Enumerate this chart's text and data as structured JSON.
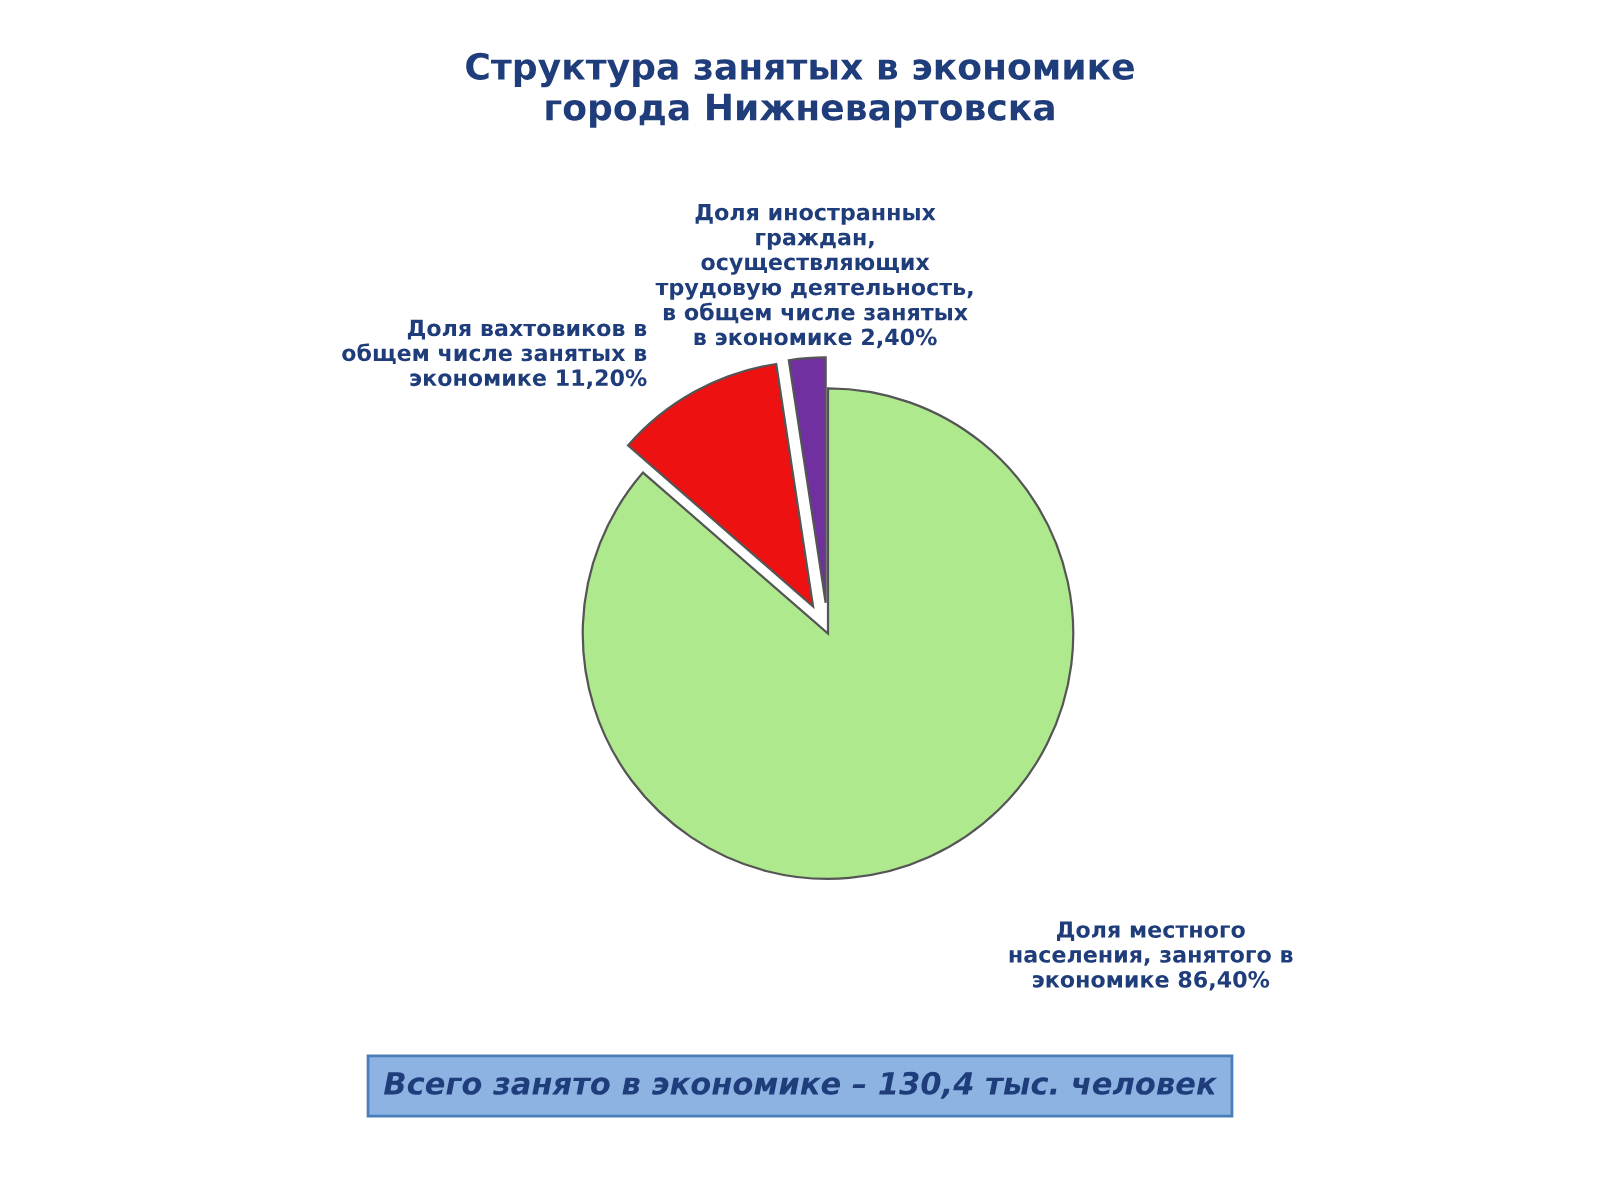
{
  "chart_data": {
    "type": "pie",
    "title": "Структура занятых в экономике\nгорода Нижневартовска",
    "categories": [
      "Доля местного\nнаселения, занятого в\nэкономике 86,40%",
      "Доля вахтовиков в\nобщем числе занятых в\nэкономике 11,20%",
      "Доля иностранных\nграждан,\nосуществляющих\nтрудовую деятельность,\nв общем числе занятых\nв экономике 2,40%"
    ],
    "values": [
      86.4,
      11.2,
      2.4
    ],
    "colors": [
      "#aee98e",
      "#ee1111",
      "#7030a0"
    ],
    "annotations": [
      "Всего занято в экономике – 130,4 тыс. человек"
    ]
  }
}
